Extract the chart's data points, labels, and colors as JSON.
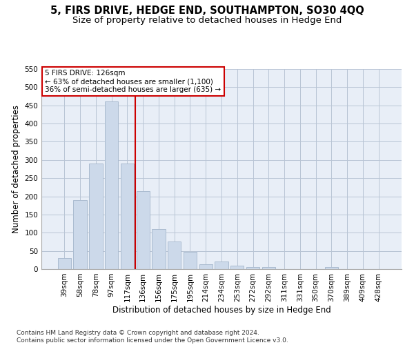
{
  "title": "5, FIRS DRIVE, HEDGE END, SOUTHAMPTON, SO30 4QQ",
  "subtitle": "Size of property relative to detached houses in Hedge End",
  "xlabel": "Distribution of detached houses by size in Hedge End",
  "ylabel": "Number of detached properties",
  "categories": [
    "39sqm",
    "58sqm",
    "78sqm",
    "97sqm",
    "117sqm",
    "136sqm",
    "156sqm",
    "175sqm",
    "195sqm",
    "214sqm",
    "234sqm",
    "253sqm",
    "272sqm",
    "292sqm",
    "311sqm",
    "331sqm",
    "350sqm",
    "370sqm",
    "389sqm",
    "409sqm",
    "428sqm"
  ],
  "values": [
    30,
    190,
    290,
    460,
    290,
    215,
    110,
    75,
    47,
    13,
    20,
    10,
    5,
    5,
    0,
    0,
    0,
    5,
    0,
    0,
    0
  ],
  "bar_color": "#ccd9ea",
  "bar_edge_color": "#aabbd0",
  "vline_x": 4.5,
  "vline_color": "#cc0000",
  "annotation_text": "5 FIRS DRIVE: 126sqm\n← 63% of detached houses are smaller (1,100)\n36% of semi-detached houses are larger (635) →",
  "annotation_box_color": "#ffffff",
  "annotation_box_edge": "#cc0000",
  "ylim": [
    0,
    550
  ],
  "yticks": [
    0,
    50,
    100,
    150,
    200,
    250,
    300,
    350,
    400,
    450,
    500,
    550
  ],
  "footer": "Contains HM Land Registry data © Crown copyright and database right 2024.\nContains public sector information licensed under the Open Government Licence v3.0.",
  "background_color": "#ffffff",
  "plot_bg_color": "#e8eef7",
  "grid_color": "#b8c4d4",
  "title_fontsize": 10.5,
  "subtitle_fontsize": 9.5,
  "axis_label_fontsize": 8.5,
  "tick_fontsize": 7.5,
  "annotation_fontsize": 7.5,
  "footer_fontsize": 6.5
}
